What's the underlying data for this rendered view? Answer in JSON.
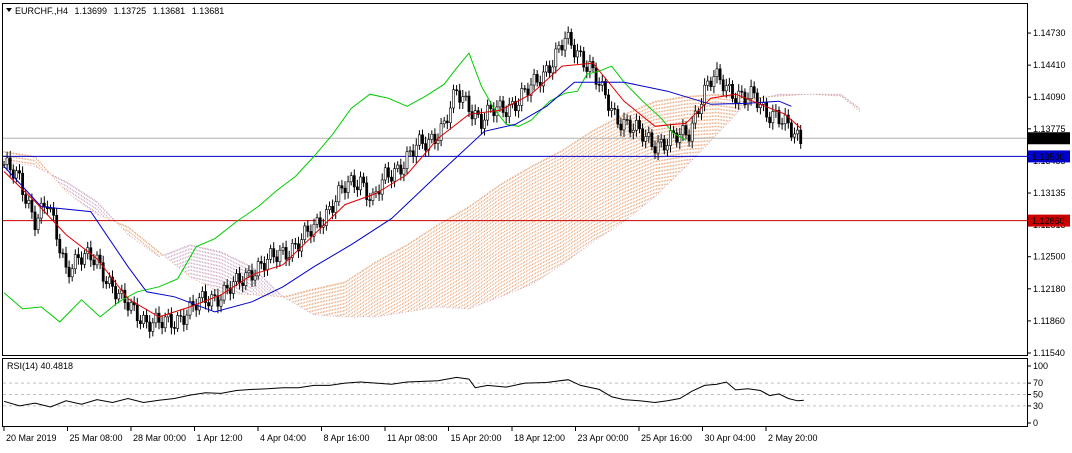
{
  "header": {
    "symbol": "EURCHF.,H4",
    "open": "1.13699",
    "high": "1.13725",
    "low": "1.13681",
    "close": "1.13681"
  },
  "rsi_panel": {
    "label": "RSI(14) 40.4818",
    "levels": [
      "100",
      "70",
      "50",
      "30",
      "0"
    ]
  },
  "price_axis": {
    "ticks": [
      "1.14730",
      "1.14410",
      "1.14090",
      "1.13775",
      "1.13455",
      "1.13135",
      "1.12815",
      "1.12500",
      "1.12180",
      "1.11860",
      "1.11540"
    ]
  },
  "time_axis": {
    "ticks": [
      "20 Mar 2019",
      "25 Mar 08:00",
      "28 Mar 00:00",
      "1 Apr 12:00",
      "4 Apr 04:00",
      "8 Apr 16:00",
      "11 Apr 08:00",
      "15 Apr 20:00",
      "18 Apr 12:00",
      "23 Apr 00:00",
      "25 Apr 16:00",
      "30 Apr 04:00",
      "2 May 20:00"
    ]
  },
  "markers": {
    "current_price": {
      "label": "1.13681",
      "value": 1.13681,
      "color": "#000000"
    },
    "support_line": {
      "label": "1.13500",
      "value": 1.135,
      "color": "#0000cc"
    },
    "resistance_line": {
      "label": "1.12860",
      "value": 1.1286,
      "color": "#cc0000"
    }
  },
  "colors": {
    "bull_candle": "#ffffff",
    "bear_candle": "#000000",
    "tenkan": "#e00000",
    "kijun": "#0000cc",
    "chikou": "#00cc00",
    "cloud_a": "#e8a070",
    "cloud_b": "#c8a0c0"
  },
  "chart_data": {
    "type": "candlestick",
    "instrument": "EURCHF",
    "timeframe": "H4",
    "ylim": [
      1.1154,
      1.1488
    ],
    "rsi_ylim": [
      0,
      100
    ],
    "close_path": [
      [
        0,
        1.1342
      ],
      [
        5,
        1.1325
      ],
      [
        10,
        1.1288
      ],
      [
        14,
        1.1302
      ],
      [
        20,
        1.1239
      ],
      [
        24,
        1.1248
      ],
      [
        30,
        1.1247
      ],
      [
        34,
        1.1225
      ],
      [
        38,
        1.1205
      ],
      [
        43,
        1.1195
      ],
      [
        46,
        1.1185
      ],
      [
        50,
        1.1182
      ],
      [
        55,
        1.1187
      ],
      [
        60,
        1.1196
      ],
      [
        65,
        1.1208
      ],
      [
        70,
        1.1212
      ],
      [
        75,
        1.1222
      ],
      [
        80,
        1.1237
      ],
      [
        85,
        1.1244
      ],
      [
        90,
        1.1255
      ],
      [
        95,
        1.1263
      ],
      [
        100,
        1.1278
      ],
      [
        105,
        1.1299
      ],
      [
        110,
        1.1318
      ],
      [
        115,
        1.1328
      ],
      [
        119,
        1.1305
      ],
      [
        123,
        1.1328
      ],
      [
        128,
        1.1342
      ],
      [
        133,
        1.1358
      ],
      [
        137,
        1.1365
      ],
      [
        142,
        1.1382
      ],
      [
        146,
        1.1412
      ],
      [
        150,
        1.1402
      ],
      [
        154,
        1.1385
      ],
      [
        158,
        1.1395
      ],
      [
        162,
        1.14
      ],
      [
        166,
        1.1405
      ],
      [
        170,
        1.1418
      ],
      [
        174,
        1.1434
      ],
      [
        178,
        1.145
      ],
      [
        181,
        1.1465
      ],
      [
        185,
        1.1455
      ],
      [
        189,
        1.144
      ],
      [
        193,
        1.1413
      ],
      [
        197,
        1.1392
      ],
      [
        201,
        1.1382
      ],
      [
        205,
        1.1372
      ],
      [
        209,
        1.1365
      ],
      [
        213,
        1.1363
      ],
      [
        217,
        1.1368
      ],
      [
        221,
        1.1376
      ],
      [
        225,
        1.1408
      ],
      [
        229,
        1.1428
      ],
      [
        232,
        1.1425
      ],
      [
        236,
        1.1412
      ],
      [
        239,
        1.1405
      ],
      [
        242,
        1.141
      ],
      [
        246,
        1.1396
      ],
      [
        249,
        1.139
      ],
      [
        252,
        1.138
      ],
      [
        255,
        1.1373
      ],
      [
        257,
        1.1368
      ]
    ],
    "candle_range_factor": 0.0014,
    "tenkan_path": [
      [
        0,
        1.1335
      ],
      [
        10,
        1.1305
      ],
      [
        20,
        1.1272
      ],
      [
        30,
        1.1248
      ],
      [
        40,
        1.1208
      ],
      [
        50,
        1.119
      ],
      [
        60,
        1.12
      ],
      [
        70,
        1.1212
      ],
      [
        80,
        1.1232
      ],
      [
        90,
        1.1242
      ],
      [
        100,
        1.1272
      ],
      [
        110,
        1.1302
      ],
      [
        120,
        1.1313
      ],
      [
        130,
        1.1332
      ],
      [
        140,
        1.1368
      ],
      [
        150,
        1.1392
      ],
      [
        160,
        1.1396
      ],
      [
        170,
        1.1412
      ],
      [
        180,
        1.144
      ],
      [
        190,
        1.1443
      ],
      [
        200,
        1.1405
      ],
      [
        210,
        1.138
      ],
      [
        220,
        1.1383
      ],
      [
        228,
        1.1408
      ],
      [
        236,
        1.1412
      ],
      [
        244,
        1.1402
      ],
      [
        252,
        1.1392
      ],
      [
        257,
        1.1378
      ]
    ],
    "kijun_path": [
      [
        0,
        1.134
      ],
      [
        12,
        1.13
      ],
      [
        28,
        1.1295
      ],
      [
        40,
        1.124
      ],
      [
        46,
        1.1215
      ],
      [
        55,
        1.121
      ],
      [
        68,
        1.1195
      ],
      [
        80,
        1.1205
      ],
      [
        90,
        1.122
      ],
      [
        100,
        1.124
      ],
      [
        112,
        1.1262
      ],
      [
        125,
        1.1288
      ],
      [
        140,
        1.1332
      ],
      [
        155,
        1.1375
      ],
      [
        165,
        1.1382
      ],
      [
        175,
        1.14
      ],
      [
        184,
        1.1424
      ],
      [
        200,
        1.1424
      ],
      [
        214,
        1.1415
      ],
      [
        228,
        1.1402
      ],
      [
        240,
        1.1403
      ],
      [
        250,
        1.1405
      ],
      [
        254,
        1.14
      ]
    ],
    "chikou_path": [
      [
        0,
        1.1214
      ],
      [
        6,
        1.1198
      ],
      [
        12,
        1.12
      ],
      [
        18,
        1.1185
      ],
      [
        25,
        1.1207
      ],
      [
        31,
        1.119
      ],
      [
        37,
        1.1205
      ],
      [
        43,
        1.1215
      ],
      [
        50,
        1.122
      ],
      [
        56,
        1.1228
      ],
      [
        62,
        1.126
      ],
      [
        68,
        1.1268
      ],
      [
        75,
        1.1285
      ],
      [
        82,
        1.13
      ],
      [
        88,
        1.1316
      ],
      [
        94,
        1.133
      ],
      [
        100,
        1.135
      ],
      [
        106,
        1.1372
      ],
      [
        112,
        1.1398
      ],
      [
        118,
        1.1412
      ],
      [
        124,
        1.1408
      ],
      [
        130,
        1.14
      ],
      [
        136,
        1.141
      ],
      [
        142,
        1.1422
      ],
      [
        146,
        1.1438
      ],
      [
        150,
        1.1453
      ],
      [
        154,
        1.142
      ],
      [
        158,
        1.1398
      ],
      [
        162,
        1.1382
      ],
      [
        166,
        1.138
      ],
      [
        170,
        1.1386
      ],
      [
        176,
        1.1405
      ],
      [
        181,
        1.1413
      ],
      [
        185,
        1.1415
      ],
      [
        188,
        1.1432
      ],
      [
        192,
        1.1435
      ],
      [
        196,
        1.144
      ],
      [
        200,
        1.1424
      ],
      [
        206,
        1.1405
      ],
      [
        212,
        1.1388
      ],
      [
        216,
        1.1373
      ],
      [
        220,
        1.1366
      ]
    ],
    "cloud_path": [
      [
        0,
        1.1355,
        1.1345
      ],
      [
        10,
        1.135,
        1.134
      ],
      [
        20,
        1.1315,
        1.1325
      ],
      [
        30,
        1.1292,
        1.1305
      ],
      [
        40,
        1.128,
        1.1272
      ],
      [
        50,
        1.1255,
        1.125
      ],
      [
        60,
        1.123,
        1.1262
      ],
      [
        70,
        1.1214,
        1.1255
      ],
      [
        80,
        1.1212,
        1.124
      ],
      [
        90,
        1.121,
        1.121
      ],
      [
        100,
        1.1218,
        1.1192
      ],
      [
        110,
        1.1225,
        1.119
      ],
      [
        120,
        1.1245,
        1.119
      ],
      [
        130,
        1.1262,
        1.1195
      ],
      [
        140,
        1.1282,
        1.12
      ],
      [
        150,
        1.13,
        1.1198
      ],
      [
        160,
        1.1322,
        1.121
      ],
      [
        170,
        1.134,
        1.1222
      ],
      [
        180,
        1.1356,
        1.1242
      ],
      [
        190,
        1.1376,
        1.1265
      ],
      [
        200,
        1.1392,
        1.1285
      ],
      [
        210,
        1.1405,
        1.131
      ],
      [
        220,
        1.141,
        1.134
      ],
      [
        230,
        1.1412,
        1.1372
      ],
      [
        240,
        1.1408,
        1.1405
      ],
      [
        250,
        1.141,
        1.1412
      ],
      [
        260,
        1.1412,
        1.1412
      ],
      [
        270,
        1.141,
        1.1412
      ],
      [
        276,
        1.1395,
        1.1398
      ]
    ],
    "rsi_path": [
      [
        0,
        38
      ],
      [
        5,
        30
      ],
      [
        10,
        35
      ],
      [
        15,
        28
      ],
      [
        20,
        39
      ],
      [
        25,
        33
      ],
      [
        30,
        41
      ],
      [
        35,
        36
      ],
      [
        40,
        43
      ],
      [
        45,
        36
      ],
      [
        50,
        40
      ],
      [
        55,
        43
      ],
      [
        60,
        49
      ],
      [
        65,
        53
      ],
      [
        70,
        52
      ],
      [
        75,
        57
      ],
      [
        80,
        59
      ],
      [
        85,
        60
      ],
      [
        90,
        62
      ],
      [
        95,
        62
      ],
      [
        100,
        66
      ],
      [
        105,
        66
      ],
      [
        110,
        70
      ],
      [
        115,
        72
      ],
      [
        120,
        70
      ],
      [
        125,
        68
      ],
      [
        130,
        72
      ],
      [
        135,
        73
      ],
      [
        140,
        74
      ],
      [
        146,
        80
      ],
      [
        150,
        77
      ],
      [
        152,
        62
      ],
      [
        156,
        66
      ],
      [
        162,
        63
      ],
      [
        168,
        70
      ],
      [
        175,
        71
      ],
      [
        182,
        76
      ],
      [
        186,
        66
      ],
      [
        192,
        59
      ],
      [
        196,
        46
      ],
      [
        200,
        41
      ],
      [
        205,
        39
      ],
      [
        210,
        36
      ],
      [
        214,
        39
      ],
      [
        218,
        43
      ],
      [
        222,
        56
      ],
      [
        226,
        66
      ],
      [
        230,
        68
      ],
      [
        233,
        72
      ],
      [
        236,
        58
      ],
      [
        240,
        60
      ],
      [
        244,
        57
      ],
      [
        247,
        48
      ],
      [
        250,
        51
      ],
      [
        253,
        43
      ],
      [
        256,
        39
      ],
      [
        258,
        40
      ]
    ]
  }
}
